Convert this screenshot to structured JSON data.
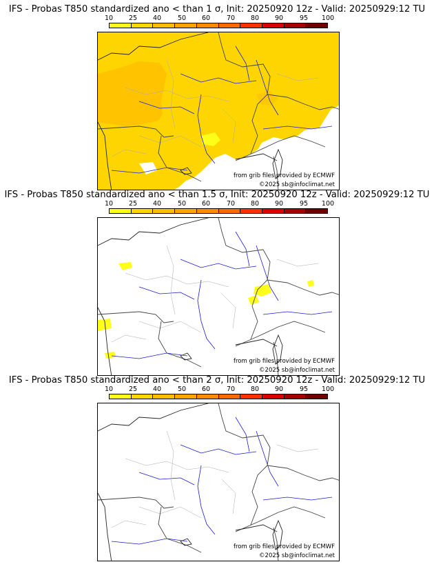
{
  "colors": {
    "scale": [
      "#ffff19",
      "#ffd700",
      "#ffbf00",
      "#ffa500",
      "#ff8c00",
      "#ff6a00",
      "#ff3000",
      "#dd0000",
      "#a80000",
      "#700000"
    ],
    "prob_fill": "#ffd500",
    "prob_fill_strong": "#ffc300",
    "low_fill": "#ffff00",
    "border": "#444444",
    "river": "#1a1ad8",
    "admin": "#aaaaaa"
  },
  "colorbar": {
    "ticks": [
      "10",
      "25",
      "40",
      "50",
      "60",
      "70",
      "80",
      "90",
      "95",
      "100"
    ]
  },
  "credits": {
    "source": "from grib files provided by ECMWF",
    "copyright": "©2025 sb@infoclimat.net"
  },
  "panels": [
    {
      "title": "IFS - Probas T850  standardized ano < than 1 σ, Init: 20250920 12z - Valid: 20250929:12 TU",
      "coverage": "extensive"
    },
    {
      "title": "IFS - Probas T850  standardized ano < than 1.5 σ, Init: 20250920 12z - Valid: 20250929:12 TU",
      "coverage": "sparse"
    },
    {
      "title": "IFS - Probas T850  standardized ano < than 2 σ, Init: 20250920 12z - Valid: 20250929:12 TU",
      "coverage": "none"
    }
  ]
}
